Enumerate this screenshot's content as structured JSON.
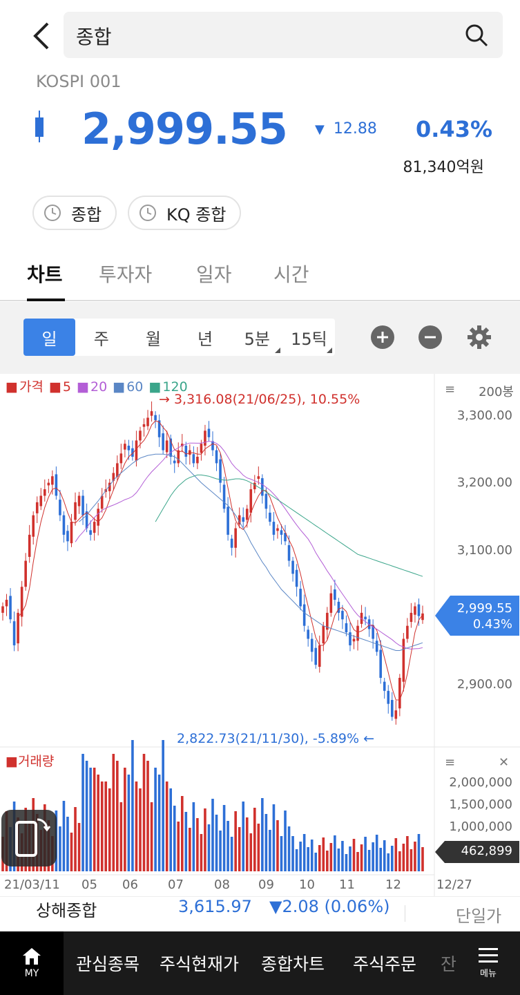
{
  "header": {
    "title": "종합",
    "code": "KOSPI 001"
  },
  "quote": {
    "price": "2,999.55",
    "change": "12.88",
    "rate": "0.43%",
    "trade_amount": "81,340억원",
    "color_down": "#2d6fd6"
  },
  "chips": [
    {
      "label": "종합",
      "icon": "clock-icon"
    },
    {
      "label": "KQ 종합",
      "icon": "clock-icon"
    }
  ],
  "tabs": [
    {
      "label": "차트",
      "active": true
    },
    {
      "label": "투자자",
      "active": false
    },
    {
      "label": "일자",
      "active": false
    },
    {
      "label": "시간",
      "active": false
    }
  ],
  "periods": [
    {
      "label": "일",
      "active": true
    },
    {
      "label": "주",
      "active": false
    },
    {
      "label": "월",
      "active": false
    },
    {
      "label": "년",
      "active": false
    },
    {
      "label": "5분",
      "active": false
    },
    {
      "label": "15틱",
      "active": false
    }
  ],
  "chart": {
    "legend": {
      "price": "가격",
      "ma5": "5",
      "ma20": "20",
      "ma60": "60",
      "ma120": "120",
      "colors": {
        "price": "#d0312d",
        "ma5": "#d0312d",
        "ma20": "#b35ed6",
        "ma60": "#5a86c5",
        "ma120": "#3aa58a"
      }
    },
    "bars_count": "200봉",
    "high_annotation": "→ 3,316.08(21/06/25), 10.55%",
    "low_annotation": "2,822.73(21/11/30), -5.89%  ←",
    "current_tag_price": "2,999.55",
    "current_tag_rate": "0.43%",
    "volume_label": "거래량",
    "volume_tag": "462,899",
    "up_color": "#d0312d",
    "down_color": "#2d6fd6"
  },
  "chart_data": {
    "type": "candlestick",
    "price_axis": [
      "3,300.00",
      "3,200.00",
      "3,100.00",
      "2,900.00"
    ],
    "price_ylim": [
      2815,
      3325
    ],
    "volume_axis": [
      "2,000,000",
      "1,500,000",
      "1,000,000"
    ],
    "x_labels": [
      "21/03/11",
      "05",
      "06",
      "07",
      "08",
      "09",
      "10",
      "11",
      "12",
      "12/27"
    ],
    "close_series": [
      3010,
      3020,
      2990,
      2950,
      3000,
      3040,
      3080,
      3120,
      3150,
      3170,
      3180,
      3190,
      3200,
      3210,
      3180,
      3150,
      3120,
      3110,
      3140,
      3170,
      3180,
      3150,
      3130,
      3120,
      3140,
      3160,
      3180,
      3190,
      3200,
      3215,
      3230,
      3245,
      3260,
      3250,
      3240,
      3265,
      3280,
      3290,
      3300,
      3310,
      3296,
      3270,
      3250,
      3265,
      3240,
      3230,
      3250,
      3260,
      3240,
      3250,
      3230,
      3240,
      3260,
      3280,
      3270,
      3250,
      3230,
      3200,
      3160,
      3120,
      3100,
      3130,
      3150,
      3140,
      3160,
      3190,
      3200,
      3210,
      3180,
      3160,
      3140,
      3120,
      3130,
      3120,
      3110,
      3080,
      3060,
      3040,
      3010,
      2980,
      2960,
      2940,
      2920,
      2950,
      2980,
      3000,
      3030,
      3020,
      3000,
      2990,
      2970,
      2950,
      2960,
      2980,
      3000,
      2990,
      2975,
      2960,
      2940,
      2900,
      2880,
      2860,
      2840,
      2850,
      2900,
      2960,
      2980,
      3000,
      3010,
      2995,
      2999
    ],
    "ma60": [
      null,
      null,
      null,
      null,
      null,
      null,
      null,
      null,
      null,
      null,
      null,
      null,
      null,
      null,
      null,
      null,
      null,
      null,
      null,
      null,
      3140,
      3145,
      3150,
      3158,
      3165,
      3172,
      3180,
      3188,
      3196,
      3204,
      3210,
      3215,
      3220,
      3225,
      3230,
      3234,
      3238,
      3240,
      3242,
      3243,
      3244,
      3244,
      3244,
      3243,
      3242,
      3240,
      3236,
      3230,
      3224,
      3218,
      3212,
      3206,
      3200,
      3195,
      3190,
      3185,
      3180,
      3175,
      3170,
      3165,
      3158,
      3150,
      3140,
      3130,
      3120,
      3108,
      3098,
      3088,
      3078,
      3070,
      3060,
      3052,
      3044,
      3036,
      3030,
      3024,
      3018,
      3012,
      3006,
      3000,
      2996,
      2992,
      2988,
      2984,
      2980,
      2978,
      2976,
      2974,
      2972,
      2970,
      2968,
      2966,
      2964,
      2962,
      2960,
      2958,
      2956,
      2954,
      2952,
      2950,
      2948,
      2946,
      2944,
      2942,
      2942,
      2944,
      2946,
      2948,
      2950,
      2952,
      2954
    ],
    "ma120": [
      null,
      null,
      null,
      null,
      null,
      null,
      null,
      null,
      null,
      null,
      null,
      null,
      null,
      null,
      null,
      null,
      null,
      null,
      null,
      null,
      null,
      null,
      null,
      null,
      null,
      null,
      null,
      null,
      null,
      null,
      null,
      null,
      null,
      null,
      null,
      null,
      null,
      null,
      null,
      null,
      3140,
      3150,
      3160,
      3170,
      3180,
      3188,
      3195,
      3200,
      3205,
      3208,
      3210,
      3212,
      3212,
      3211,
      3210,
      3208,
      3206,
      3205,
      3204,
      3204,
      3205,
      3206,
      3206,
      3205,
      3203,
      3200,
      3197,
      3193,
      3190,
      3186,
      3182,
      3178,
      3174,
      3170,
      3166,
      3162,
      3158,
      3154,
      3150,
      3146,
      3142,
      3138,
      3134,
      3130,
      3126,
      3122,
      3118,
      3114,
      3110,
      3106,
      3102,
      3098,
      3094,
      3090,
      3088,
      3086,
      3084,
      3082,
      3080,
      3078,
      3076,
      3074,
      3072,
      3070,
      3068,
      3066,
      3064,
      3062,
      3060,
      3058,
      3056
    ]
  },
  "bottom": {
    "index_name": "상해종합",
    "index_value": "3,615.97",
    "index_change": "▼2.08 (0.06%)",
    "unit_price": "단일가"
  },
  "nav": {
    "my": "MY",
    "items": [
      "관심종목",
      "주식현재가",
      "종합차트",
      "주식주문",
      "잔"
    ],
    "menu": "메뉴"
  }
}
